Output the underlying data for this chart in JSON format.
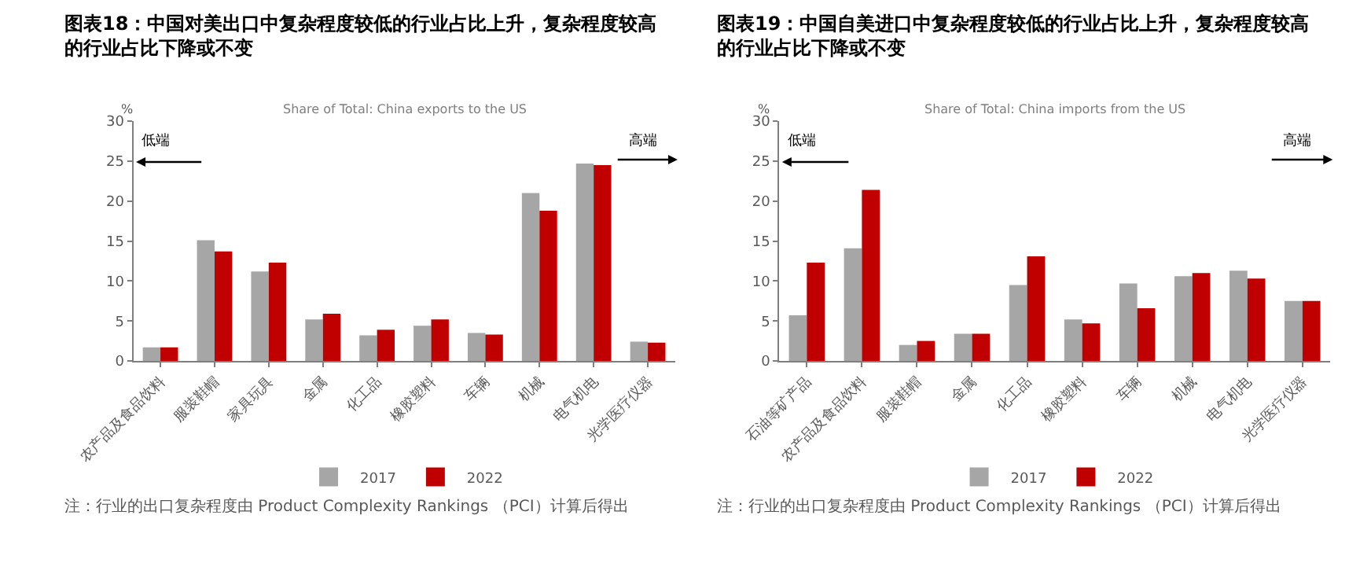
{
  "chart_data": [
    {
      "type": "bar",
      "title": "图表18：中国对美出口中复杂程度较低的行业占比上升，复杂程度较高的行业占比下降或不变",
      "subtitle": "Share of Total: China exports to the US",
      "ylabel": "%",
      "categories": [
        "农产品及食品饮料",
        "服装鞋帽",
        "家具玩具",
        "金属",
        "化工品",
        "橡胶塑料",
        "车辆",
        "机械",
        "电气机电",
        "光学医疗仪器"
      ],
      "series": [
        {
          "name": "2017",
          "color": "#a6a6a6",
          "values": [
            1.7,
            15.1,
            11.2,
            5.2,
            3.2,
            4.4,
            3.5,
            21.0,
            24.7,
            2.4
          ]
        },
        {
          "name": "2022",
          "color": "#c00000",
          "values": [
            1.7,
            13.7,
            12.3,
            5.9,
            3.9,
            5.2,
            3.3,
            18.8,
            24.5,
            2.3
          ]
        }
      ],
      "ylim": [
        0,
        30
      ],
      "yticks": [
        0,
        5,
        10,
        15,
        20,
        25,
        30
      ],
      "legend": "bottom",
      "annotations": [
        "低端",
        "高端",
        "注：行业的出口复杂程度由 Product Complexity Rankings （PCI）计算后得出"
      ]
    },
    {
      "type": "bar",
      "title": "图表19：中国自美进口中复杂程度较低的行业占比上升，复杂程度较高的行业占比下降或不变",
      "subtitle": "Share of Total: China imports from the US",
      "ylabel": "%",
      "categories": [
        "石油等矿产品",
        "农产品及食品饮料",
        "服装鞋帽",
        "金属",
        "化工品",
        "橡胶塑料",
        "车辆",
        "机械",
        "电气机电",
        "光学医疗仪器"
      ],
      "series": [
        {
          "name": "2017",
          "color": "#a6a6a6",
          "values": [
            5.7,
            14.1,
            2.0,
            3.4,
            9.5,
            5.2,
            9.7,
            10.6,
            11.3,
            7.5
          ]
        },
        {
          "name": "2022",
          "color": "#c00000",
          "values": [
            12.3,
            21.4,
            2.5,
            3.4,
            13.1,
            4.7,
            6.6,
            11.0,
            10.3,
            7.5
          ]
        }
      ],
      "ylim": [
        0,
        30
      ],
      "yticks": [
        0,
        5,
        10,
        15,
        20,
        25,
        30
      ],
      "legend": "bottom",
      "annotations": [
        "低端",
        "高端",
        "注：行业的出口复杂程度由 Product Complexity Rankings （PCI）计算后得出"
      ]
    }
  ]
}
